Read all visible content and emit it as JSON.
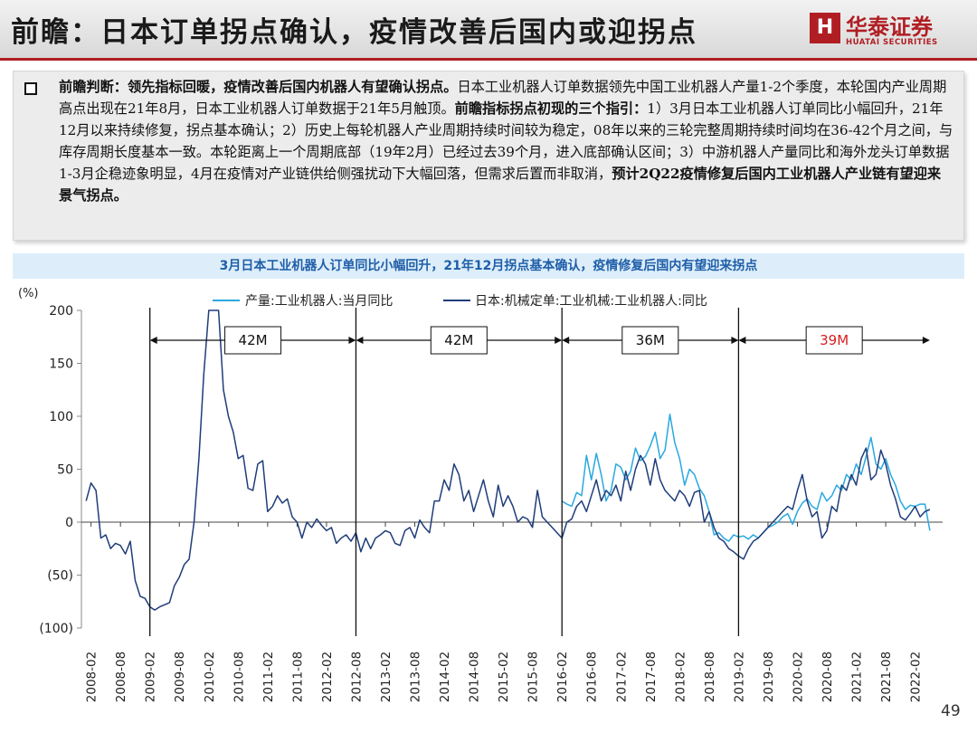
{
  "header": {
    "title": "前瞻：日本订单拐点确认，疫情改善后国内或迎拐点",
    "logo_name": "华泰证券",
    "logo_sub": "HUATAI SECURITIES"
  },
  "summary": {
    "lead": "前瞻判断：领先指标回暖，疫情改善后国内机器人有望确认拐点。",
    "body": "日本工业机器人订单数据领先中国工业机器人产量1-2个季度，本轮国内产业周期高点出现在21年8月，日本工业机器人订单数据于21年5月触顶。",
    "emph": "前瞻指标拐点初现的三个指引：",
    "points": "1）3月日本工业机器人订单同比小幅回升，21年12月以来持续修复，拐点基本确认；2）历史上每轮机器人产业周期持续时间较为稳定，08年以来的三轮完整周期持续时间均在36-42个月之间，与库存周期长度基本一致。本轮距离上一个周期底部（19年2月）已经过去39个月，进入底部确认区间；3）中游机器人产量同比和海外龙头订单数据1-3月企稳迹象明显，4月在疫情对产业链供给侧强扰动下大幅回落，但需求后置而非取消，",
    "conclusion": "预计2Q22疫情修复后国内工业机器人产业链有望迎来景气拐点。"
  },
  "chart_title": "3月日本工业机器人订单同比小幅回升，21年12月拐点基本确认，疫情修复后国内有望迎来拐点",
  "page_number": "49",
  "chart_data": {
    "type": "line",
    "yunit": "(%)",
    "ylim": [
      -100,
      200
    ],
    "yticks": [
      200,
      150,
      100,
      50,
      0,
      -50,
      -100
    ],
    "yticklabels": [
      "200",
      "150",
      "100",
      "50",
      "0",
      "(50)",
      "(100)"
    ],
    "categories": [
      "2008-02",
      "2008-08",
      "2009-02",
      "2009-08",
      "2010-02",
      "2010-08",
      "2011-02",
      "2011-08",
      "2012-02",
      "2012-08",
      "2013-02",
      "2013-08",
      "2014-02",
      "2014-08",
      "2015-02",
      "2015-08",
      "2016-02",
      "2016-08",
      "2017-02",
      "2017-08",
      "2018-02",
      "2018-08",
      "2019-02",
      "2019-08",
      "2020-02",
      "2020-08",
      "2021-02",
      "2021-08",
      "2022-02"
    ],
    "cycle_lines": [
      "2009-02",
      "2012-08",
      "2016-02",
      "2019-02"
    ],
    "cycle_end": "2022-05",
    "cycles": [
      {
        "label": "42M",
        "highlight": false
      },
      {
        "label": "42M",
        "highlight": false
      },
      {
        "label": "36M",
        "highlight": false
      },
      {
        "label": "39M",
        "highlight": true
      }
    ],
    "colors": {
      "production": "#29a8e0",
      "orders": "#1f3d7a",
      "highlight": "#d62020"
    },
    "series": [
      {
        "name": "产量:工业机器人:当月同比",
        "color": "#29a8e0",
        "start": "2016-02",
        "points": [
          [
            2016.083,
            20
          ],
          [
            2016.167,
            17
          ],
          [
            2016.25,
            15
          ],
          [
            2016.333,
            28
          ],
          [
            2016.417,
            25
          ],
          [
            2016.5,
            63
          ],
          [
            2016.583,
            40
          ],
          [
            2016.667,
            65
          ],
          [
            2016.75,
            45
          ],
          [
            2016.833,
            20
          ],
          [
            2016.917,
            30
          ],
          [
            2017.0,
            55
          ],
          [
            2017.083,
            52
          ],
          [
            2017.167,
            40
          ],
          [
            2017.25,
            48
          ],
          [
            2017.333,
            70
          ],
          [
            2017.417,
            58
          ],
          [
            2017.5,
            62
          ],
          [
            2017.583,
            72
          ],
          [
            2017.667,
            85
          ],
          [
            2017.75,
            60
          ],
          [
            2017.833,
            68
          ],
          [
            2017.917,
            102
          ],
          [
            2018.0,
            75
          ],
          [
            2018.083,
            60
          ],
          [
            2018.167,
            35
          ],
          [
            2018.25,
            50
          ],
          [
            2018.333,
            45
          ],
          [
            2018.417,
            32
          ],
          [
            2018.5,
            25
          ],
          [
            2018.583,
            10
          ],
          [
            2018.667,
            -12
          ],
          [
            2018.75,
            -10
          ],
          [
            2018.833,
            -15
          ],
          [
            2018.917,
            -18
          ],
          [
            2019.0,
            -12
          ],
          [
            2019.083,
            -14
          ],
          [
            2019.167,
            -13
          ],
          [
            2019.25,
            -16
          ],
          [
            2019.333,
            -12
          ],
          [
            2019.417,
            -15
          ],
          [
            2019.5,
            -10
          ],
          [
            2019.583,
            -5
          ],
          [
            2019.667,
            -3
          ],
          [
            2019.75,
            0
          ],
          [
            2019.833,
            5
          ],
          [
            2019.917,
            8
          ],
          [
            2020.0,
            -2
          ],
          [
            2020.083,
            10
          ],
          [
            2020.167,
            18
          ],
          [
            2020.25,
            22
          ],
          [
            2020.333,
            15
          ],
          [
            2020.417,
            12
          ],
          [
            2020.5,
            28
          ],
          [
            2020.583,
            20
          ],
          [
            2020.667,
            25
          ],
          [
            2020.75,
            35
          ],
          [
            2020.833,
            30
          ],
          [
            2020.917,
            45
          ],
          [
            2021.0,
            40
          ],
          [
            2021.083,
            55
          ],
          [
            2021.167,
            45
          ],
          [
            2021.25,
            62
          ],
          [
            2021.333,
            80
          ],
          [
            2021.417,
            55
          ],
          [
            2021.5,
            50
          ],
          [
            2021.583,
            60
          ],
          [
            2021.667,
            45
          ],
          [
            2021.75,
            35
          ],
          [
            2021.833,
            20
          ],
          [
            2021.917,
            12
          ],
          [
            2022.0,
            16
          ],
          [
            2022.083,
            15
          ],
          [
            2022.167,
            17
          ],
          [
            2022.25,
            17
          ],
          [
            2022.333,
            -8
          ]
        ]
      },
      {
        "name": "日本:机械定单:工业机械:工业机器人:同比",
        "color": "#1f3d7a",
        "start": "2008-02",
        "points": [
          [
            2008.0,
            20
          ],
          [
            2008.083,
            37
          ],
          [
            2008.167,
            30
          ],
          [
            2008.25,
            -15
          ],
          [
            2008.333,
            -12
          ],
          [
            2008.417,
            -25
          ],
          [
            2008.5,
            -20
          ],
          [
            2008.583,
            -22
          ],
          [
            2008.667,
            -30
          ],
          [
            2008.75,
            -18
          ],
          [
            2008.833,
            -55
          ],
          [
            2008.917,
            -70
          ],
          [
            2009.0,
            -72
          ],
          [
            2009.083,
            -80
          ],
          [
            2009.167,
            -83
          ],
          [
            2009.25,
            -80
          ],
          [
            2009.333,
            -78
          ],
          [
            2009.417,
            -76
          ],
          [
            2009.5,
            -60
          ],
          [
            2009.583,
            -52
          ],
          [
            2009.667,
            -40
          ],
          [
            2009.75,
            -35
          ],
          [
            2009.833,
            0
          ],
          [
            2009.917,
            60
          ],
          [
            2010.0,
            140
          ],
          [
            2010.083,
            200
          ],
          [
            2010.25,
            200
          ],
          [
            2010.333,
            125
          ],
          [
            2010.417,
            100
          ],
          [
            2010.5,
            85
          ],
          [
            2010.583,
            60
          ],
          [
            2010.667,
            63
          ],
          [
            2010.75,
            32
          ],
          [
            2010.833,
            30
          ],
          [
            2010.917,
            55
          ],
          [
            2011.0,
            58
          ],
          [
            2011.083,
            10
          ],
          [
            2011.167,
            15
          ],
          [
            2011.25,
            25
          ],
          [
            2011.333,
            18
          ],
          [
            2011.417,
            22
          ],
          [
            2011.5,
            5
          ],
          [
            2011.583,
            0
          ],
          [
            2011.667,
            -15
          ],
          [
            2011.75,
            0
          ],
          [
            2011.833,
            -5
          ],
          [
            2011.917,
            3
          ],
          [
            2012.0,
            -3
          ],
          [
            2012.083,
            -8
          ],
          [
            2012.167,
            -5
          ],
          [
            2012.25,
            -20
          ],
          [
            2012.333,
            -15
          ],
          [
            2012.417,
            -12
          ],
          [
            2012.5,
            -18
          ],
          [
            2012.583,
            -10
          ],
          [
            2012.667,
            -28
          ],
          [
            2012.75,
            -15
          ],
          [
            2012.833,
            -25
          ],
          [
            2012.917,
            -15
          ],
          [
            2013.0,
            -12
          ],
          [
            2013.083,
            -8
          ],
          [
            2013.167,
            -10
          ],
          [
            2013.25,
            -20
          ],
          [
            2013.333,
            -22
          ],
          [
            2013.417,
            -8
          ],
          [
            2013.5,
            -5
          ],
          [
            2013.583,
            -15
          ],
          [
            2013.667,
            2
          ],
          [
            2013.75,
            -5
          ],
          [
            2013.833,
            -10
          ],
          [
            2013.917,
            20
          ],
          [
            2014.0,
            20
          ],
          [
            2014.083,
            40
          ],
          [
            2014.167,
            30
          ],
          [
            2014.25,
            55
          ],
          [
            2014.333,
            45
          ],
          [
            2014.417,
            20
          ],
          [
            2014.5,
            30
          ],
          [
            2014.583,
            10
          ],
          [
            2014.667,
            25
          ],
          [
            2014.75,
            40
          ],
          [
            2014.833,
            20
          ],
          [
            2014.917,
            5
          ],
          [
            2015.0,
            35
          ],
          [
            2015.083,
            15
          ],
          [
            2015.167,
            25
          ],
          [
            2015.25,
            15
          ],
          [
            2015.333,
            0
          ],
          [
            2015.417,
            5
          ],
          [
            2015.5,
            3
          ],
          [
            2015.583,
            -5
          ],
          [
            2015.667,
            30
          ],
          [
            2015.75,
            5
          ],
          [
            2015.833,
            0
          ],
          [
            2015.917,
            -5
          ],
          [
            2016.0,
            -10
          ],
          [
            2016.083,
            -15
          ],
          [
            2016.167,
            0
          ],
          [
            2016.25,
            3
          ],
          [
            2016.333,
            15
          ],
          [
            2016.417,
            20
          ],
          [
            2016.5,
            10
          ],
          [
            2016.583,
            25
          ],
          [
            2016.667,
            40
          ],
          [
            2016.75,
            20
          ],
          [
            2016.833,
            30
          ],
          [
            2016.917,
            25
          ],
          [
            2017.0,
            35
          ],
          [
            2017.083,
            20
          ],
          [
            2017.167,
            48
          ],
          [
            2017.25,
            30
          ],
          [
            2017.333,
            50
          ],
          [
            2017.417,
            63
          ],
          [
            2017.5,
            55
          ],
          [
            2017.583,
            35
          ],
          [
            2017.667,
            60
          ],
          [
            2017.75,
            40
          ],
          [
            2017.833,
            30
          ],
          [
            2017.917,
            25
          ],
          [
            2018.0,
            20
          ],
          [
            2018.083,
            30
          ],
          [
            2018.167,
            25
          ],
          [
            2018.25,
            15
          ],
          [
            2018.333,
            28
          ],
          [
            2018.417,
            30
          ],
          [
            2018.5,
            0
          ],
          [
            2018.583,
            10
          ],
          [
            2018.667,
            -5
          ],
          [
            2018.75,
            -15
          ],
          [
            2018.833,
            -18
          ],
          [
            2018.917,
            -25
          ],
          [
            2019.0,
            -28
          ],
          [
            2019.083,
            -32
          ],
          [
            2019.167,
            -35
          ],
          [
            2019.25,
            -25
          ],
          [
            2019.333,
            -18
          ],
          [
            2019.417,
            -15
          ],
          [
            2019.5,
            -10
          ],
          [
            2019.583,
            -5
          ],
          [
            2019.667,
            0
          ],
          [
            2019.75,
            5
          ],
          [
            2019.833,
            10
          ],
          [
            2019.917,
            15
          ],
          [
            2020.0,
            12
          ],
          [
            2020.083,
            30
          ],
          [
            2020.167,
            45
          ],
          [
            2020.25,
            20
          ],
          [
            2020.333,
            5
          ],
          [
            2020.417,
            10
          ],
          [
            2020.5,
            -15
          ],
          [
            2020.583,
            -8
          ],
          [
            2020.667,
            15
          ],
          [
            2020.75,
            10
          ],
          [
            2020.833,
            35
          ],
          [
            2020.917,
            30
          ],
          [
            2021.0,
            45
          ],
          [
            2021.083,
            35
          ],
          [
            2021.167,
            60
          ],
          [
            2021.25,
            70
          ],
          [
            2021.333,
            40
          ],
          [
            2021.417,
            45
          ],
          [
            2021.5,
            68
          ],
          [
            2021.583,
            55
          ],
          [
            2021.667,
            35
          ],
          [
            2021.75,
            22
          ],
          [
            2021.833,
            5
          ],
          [
            2021.917,
            2
          ],
          [
            2022.0,
            8
          ],
          [
            2022.083,
            15
          ],
          [
            2022.167,
            5
          ],
          [
            2022.25,
            10
          ],
          [
            2022.333,
            12
          ]
        ]
      }
    ]
  }
}
